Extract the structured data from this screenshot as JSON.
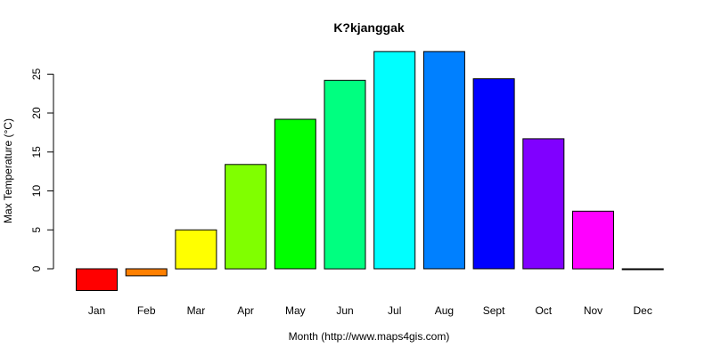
{
  "chart_data": {
    "type": "bar",
    "title": "K?kjanggak",
    "xlabel": "Month (http://www.maps4gis.com)",
    "ylabel": "Max Temperature (°C)",
    "categories": [
      "Jan",
      "Feb",
      "Mar",
      "Apr",
      "May",
      "Jun",
      "Jul",
      "Aug",
      "Sept",
      "Oct",
      "Nov",
      "Dec"
    ],
    "values": [
      -2.8,
      -0.9,
      5.0,
      13.4,
      19.2,
      24.2,
      27.9,
      27.9,
      24.4,
      16.7,
      7.4,
      -0.1
    ],
    "colors": [
      "#FF0000",
      "#FF8000",
      "#FFFF00",
      "#80FF00",
      "#00FF00",
      "#00FF80",
      "#00FFFF",
      "#0080FF",
      "#0000FF",
      "#8000FF",
      "#FF00FF",
      "#FF0080"
    ],
    "yticks": [
      0,
      5,
      10,
      15,
      20,
      25
    ],
    "ylim": [
      -2.8,
      27.9
    ],
    "grid": false,
    "legend": "none"
  }
}
